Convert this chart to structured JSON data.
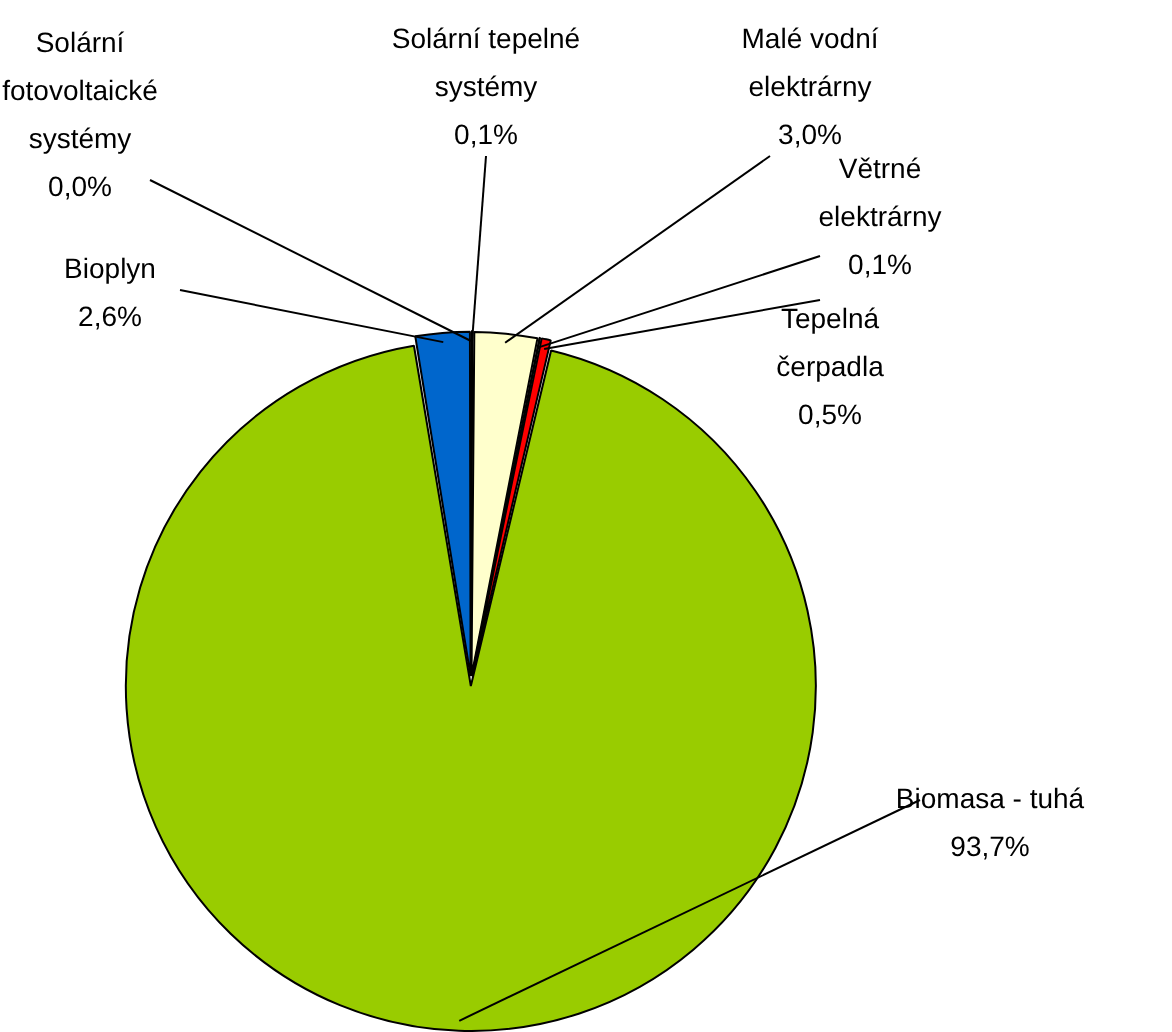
{
  "chart_data": {
    "type": "pie",
    "categories": [
      "Solární fotovoltaické systémy",
      "Solární tepelné systémy",
      "Malé vodní elektrárny",
      "Větrné elektrárny",
      "Tepelná čerpadla",
      "Biomasa - tuhá",
      "Bioplyn"
    ],
    "values": [
      0.0,
      0.1,
      3.0,
      0.1,
      0.5,
      93.7,
      2.6
    ],
    "colors": [
      "#ffcc00",
      "#ffff66",
      "#ffffcc",
      "#ffffff",
      "#ff0000",
      "#99cc00",
      "#0066cc"
    ],
    "value_labels": [
      "0,0%",
      "0,1%",
      "3,0%",
      "0,1%",
      "0,5%",
      "93,7%",
      "2,6%"
    ],
    "legend": false
  }
}
